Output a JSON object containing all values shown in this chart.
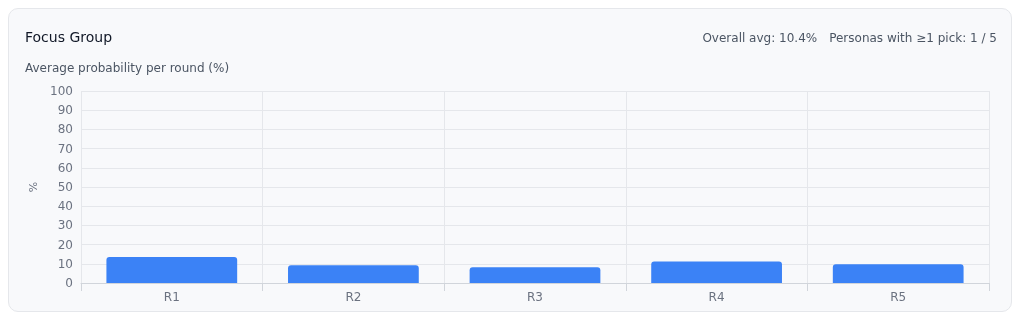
{
  "chart_data": {
    "type": "bar",
    "title": "Focus Group",
    "subtitle": "Average probability per round (%)",
    "ylabel": "%",
    "annotations": [
      "Overall avg: 10.4%",
      "Personas with ≥1 pick: 1 / 5"
    ],
    "categories": [
      "R1",
      "R2",
      "R3",
      "R4",
      "R5"
    ],
    "values": [
      13.5,
      9.3,
      8.2,
      11.2,
      9.8
    ],
    "color": "#3b82f6",
    "ylim": [
      0,
      100
    ],
    "yticks": [
      0,
      10,
      20,
      30,
      40,
      50,
      60,
      70,
      80,
      90,
      100
    ],
    "grid": true
  }
}
